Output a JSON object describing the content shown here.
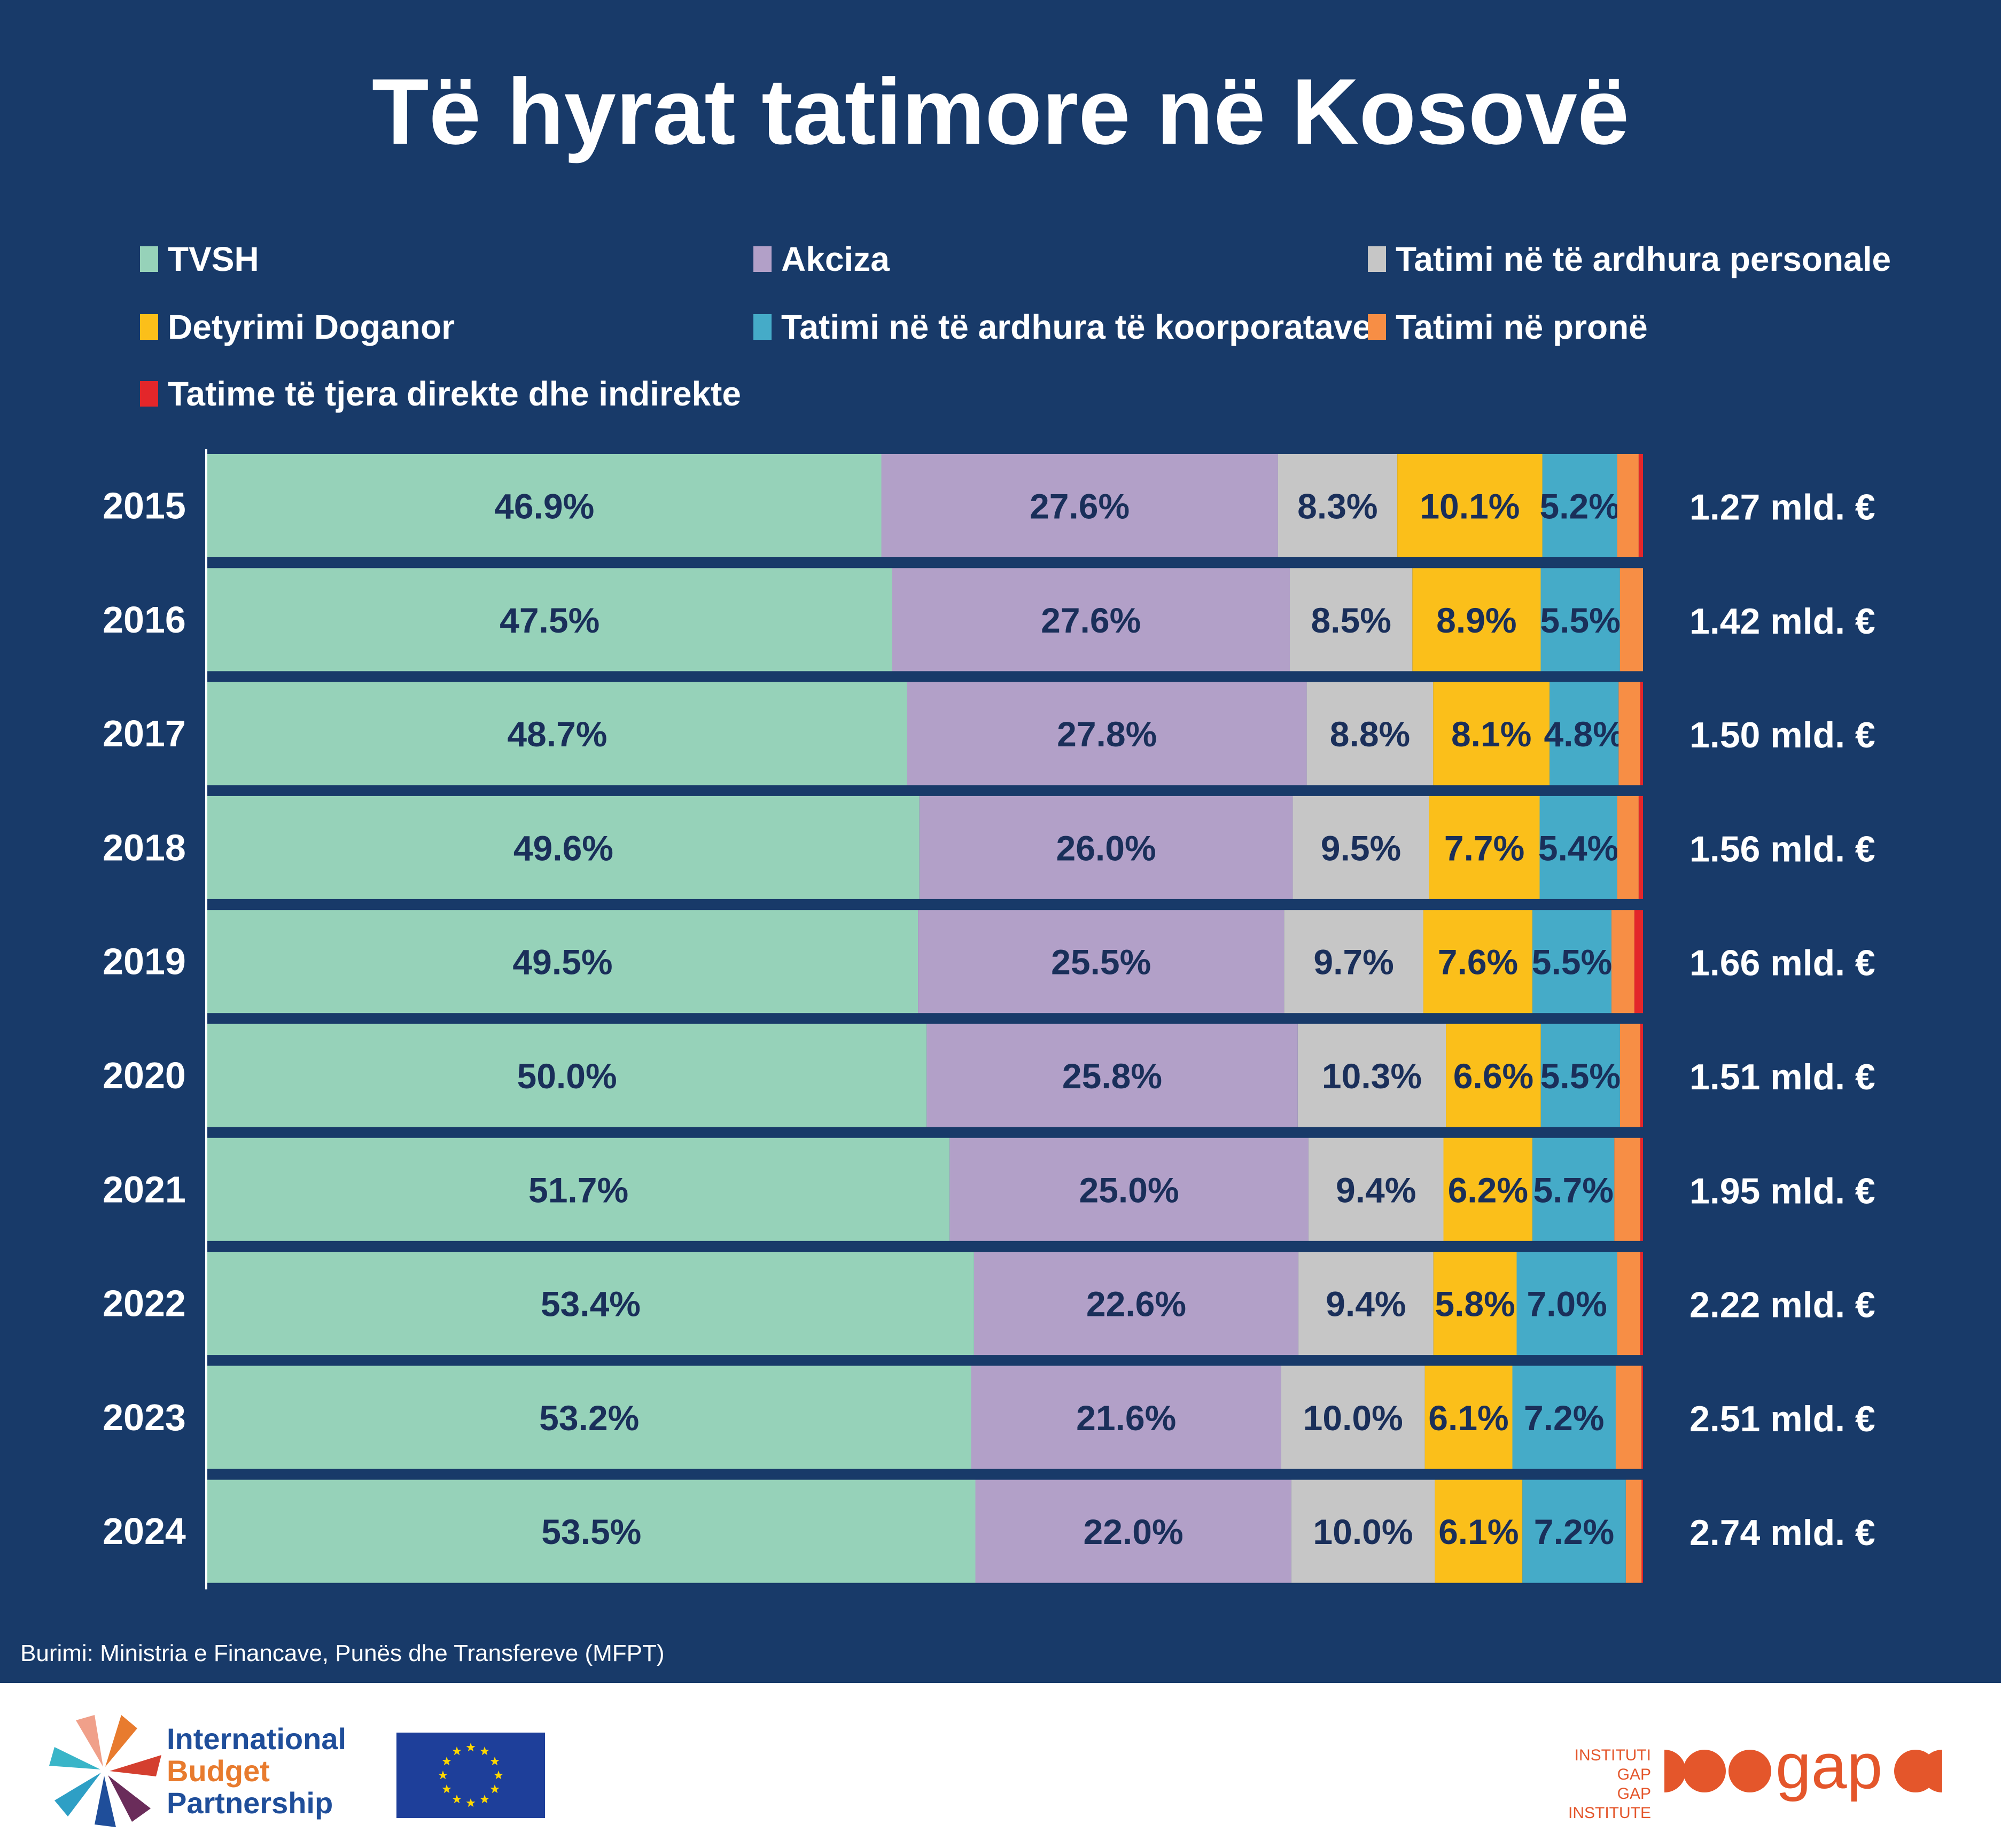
{
  "title": "Të hyrat tatimore në Kosovë",
  "source": "Burimi: Ministria e Financave, Punës dhe Transfereve (MFPT)",
  "logos": {
    "ibp": [
      "International",
      "Budget",
      "Partnership"
    ],
    "gap_text": [
      "INSTITUTI GAP",
      "GAP INSTITUTE"
    ],
    "gap_word": "gap"
  },
  "colors": {
    "background": "#183a69",
    "label_text": "#1a2f5a"
  },
  "chart_data": {
    "type": "bar",
    "orientation": "horizontal",
    "stacked": true,
    "normalized": true,
    "categories": [
      "2015",
      "2016",
      "2017",
      "2018",
      "2019",
      "2020",
      "2021",
      "2022",
      "2023",
      "2024"
    ],
    "series": [
      {
        "name": "TVSH",
        "color": "#96d2b9",
        "labels_shown": true,
        "values": [
          46.9,
          47.5,
          48.7,
          49.6,
          49.5,
          50.0,
          51.7,
          53.4,
          53.2,
          53.5
        ],
        "labels": [
          "46.9%",
          "47.5%",
          "48.7%",
          "49.6%",
          "49.5%",
          "50.0%",
          "51.7%",
          "53.4%",
          "53.2%",
          "53.5%"
        ]
      },
      {
        "name": "Akciza",
        "color": "#b2a0c8",
        "labels_shown": true,
        "values": [
          27.6,
          27.6,
          27.8,
          26.0,
          25.5,
          25.8,
          25.0,
          22.6,
          21.6,
          22.0
        ],
        "labels": [
          "27.6%",
          "27.6%",
          "27.8%",
          "26.0%",
          "25.5%",
          "25.8%",
          "25.0%",
          "22.6%",
          "21.6%",
          "22.0%"
        ]
      },
      {
        "name": "Tatimi në të ardhura personale",
        "color": "#c6c6c6",
        "labels_shown": true,
        "values": [
          8.3,
          8.5,
          8.8,
          9.5,
          9.7,
          10.3,
          9.4,
          9.4,
          10.0,
          10.0
        ],
        "labels": [
          "8.3%",
          "8.5%",
          "8.8%",
          "9.5%",
          "9.7%",
          "10.3%",
          "9.4%",
          "9.4%",
          "10.0%",
          "10.0%"
        ]
      },
      {
        "name": "Detyrimi Doganor",
        "color": "#fbbf1a",
        "labels_shown": true,
        "values": [
          10.1,
          8.9,
          8.1,
          7.7,
          7.6,
          6.6,
          6.2,
          5.8,
          6.1,
          6.1
        ],
        "labels": [
          "10.1%",
          "8.9%",
          "8.1%",
          "7.7%",
          "7.6%",
          "6.6%",
          "6.2%",
          "5.8%",
          "6.1%",
          "6.1%"
        ]
      },
      {
        "name": "Tatimi në të ardhura të koorporatave",
        "color": "#45abc8",
        "labels_shown": true,
        "values": [
          5.2,
          5.5,
          4.8,
          5.4,
          5.5,
          5.5,
          5.7,
          7.0,
          7.2,
          7.2
        ],
        "labels": [
          "5.2%",
          "5.5%",
          "4.8%",
          "5.4%",
          "5.5%",
          "5.5%",
          "5.7%",
          "7.0%",
          "7.2%",
          "7.2%"
        ]
      },
      {
        "name": "Tatimi në pronë",
        "color": "#f78e45",
        "labels_shown": false,
        "values": [
          1.5,
          1.6,
          1.5,
          1.5,
          1.6,
          1.4,
          1.8,
          1.6,
          1.8,
          1.1
        ]
      },
      {
        "name": "Tatime  të tjera direkte dhe indirekte",
        "color": "#e3262a",
        "labels_shown": false,
        "values": [
          0.3,
          0.0,
          0.2,
          0.3,
          0.6,
          0.2,
          0.2,
          0.2,
          0.1,
          0.1
        ]
      }
    ],
    "totals": [
      "1.27 mld. €",
      "1.42 mld. €",
      "1.50 mld. €",
      "1.56 mld. €",
      "1.66 mld. €",
      "1.51 mld. €",
      "1.95 mld. €",
      "2.22 mld. €",
      "2.51 mld. €",
      "2.74 mld. €"
    ],
    "xlim": [
      0,
      100
    ],
    "legend_position": "top"
  }
}
